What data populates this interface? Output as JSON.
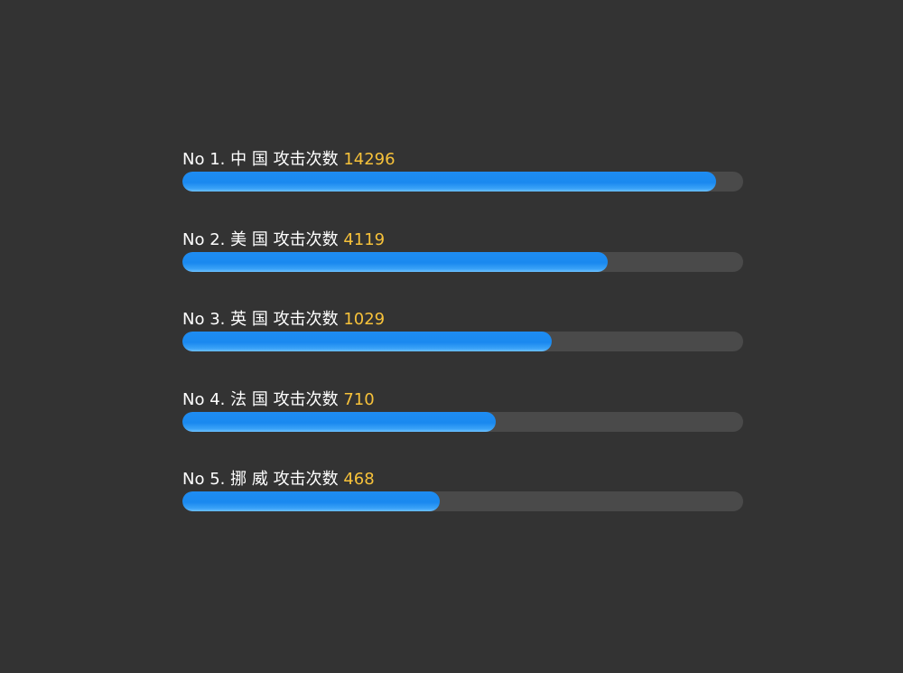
{
  "chart_data": {
    "type": "bar",
    "orientation": "horizontal",
    "title": "",
    "xlabel": "",
    "ylabel": "",
    "rank_prefix": "No",
    "metric_label": "攻击次数",
    "items": [
      {
        "rank": "1",
        "country": "中 国",
        "value": 14296,
        "fill": 0.952
      },
      {
        "rank": "2",
        "country": "美 国",
        "value": 4119,
        "fill": 0.758
      },
      {
        "rank": "3",
        "country": "英 国",
        "value": 1029,
        "fill": 0.659
      },
      {
        "rank": "4",
        "country": "法 国",
        "value": 710,
        "fill": 0.559
      },
      {
        "rank": "5",
        "country": "挪 威",
        "value": 468,
        "fill": 0.459
      }
    ],
    "colors": {
      "bar": "#1a89ef",
      "track": "#4a4a4a",
      "label": "#ffffff",
      "value": "#f7c23a",
      "background": "#333333"
    }
  }
}
